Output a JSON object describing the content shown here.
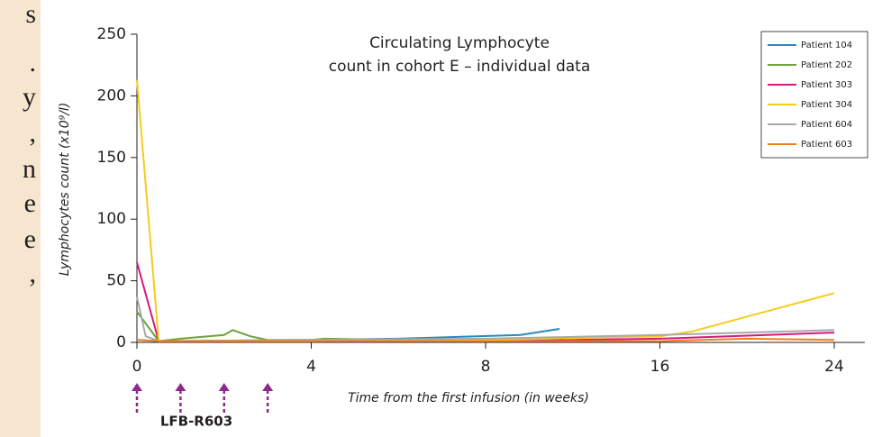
{
  "left_fragments": [
    "s",
    ".",
    "y",
    ",",
    "n",
    "e",
    "e",
    ","
  ],
  "chart_data": {
    "type": "line",
    "title_lines": [
      "Circulating Lymphocyte",
      "count in cohort E – individual data"
    ],
    "y_label": "Lymphocytes count (x10⁹/l)",
    "x_label": "Time from the first infusion (in weeks)",
    "xlim": [
      0,
      24
    ],
    "xticks": [
      0,
      4,
      8,
      16,
      24
    ],
    "ylim": [
      0,
      250
    ],
    "yticks": [
      0,
      50,
      100,
      150,
      200,
      250
    ],
    "legend": "upper right",
    "infusion_label": "LFB-R603",
    "infusion_color": "#8e2a8e",
    "infusions": [
      0,
      1,
      2,
      3
    ],
    "series": [
      {
        "name": "Patient 104",
        "color": "#2a8ab8",
        "x": [
          0,
          0.5,
          4,
          6,
          9.6,
          11.4
        ],
        "values": [
          2,
          1,
          2,
          3,
          6,
          11
        ]
      },
      {
        "name": "Patient 202",
        "color": "#6ea23a",
        "x": [
          0,
          0.5,
          1,
          2,
          2.2,
          2.6,
          3,
          4,
          4.3,
          6,
          8
        ],
        "values": [
          25,
          1,
          3,
          6,
          10,
          5,
          2,
          2,
          3,
          2,
          1
        ]
      },
      {
        "name": "Patient 303",
        "color": "#d4197f",
        "x": [
          0,
          0.5,
          4,
          8,
          16,
          24
        ],
        "values": [
          65,
          1,
          1,
          1,
          3,
          8
        ]
      },
      {
        "name": "Patient 304",
        "color": "#f4cc1a",
        "x": [
          0,
          0.5,
          4,
          8,
          16,
          17.5,
          24
        ],
        "values": [
          213,
          1,
          1,
          2,
          5,
          9,
          40
        ]
      },
      {
        "name": "Patient 604",
        "color": "#a9a9a9",
        "x": [
          0,
          0.2,
          0.5,
          4,
          8,
          16,
          24
        ],
        "values": [
          37,
          5,
          1,
          2,
          3,
          6,
          10
        ]
      },
      {
        "name": "Patient 603",
        "color": "#f07f1d",
        "x": [
          0,
          0.5,
          4,
          8,
          16,
          20,
          24
        ],
        "values": [
          2,
          1,
          1,
          1,
          1,
          3,
          2
        ]
      }
    ]
  }
}
